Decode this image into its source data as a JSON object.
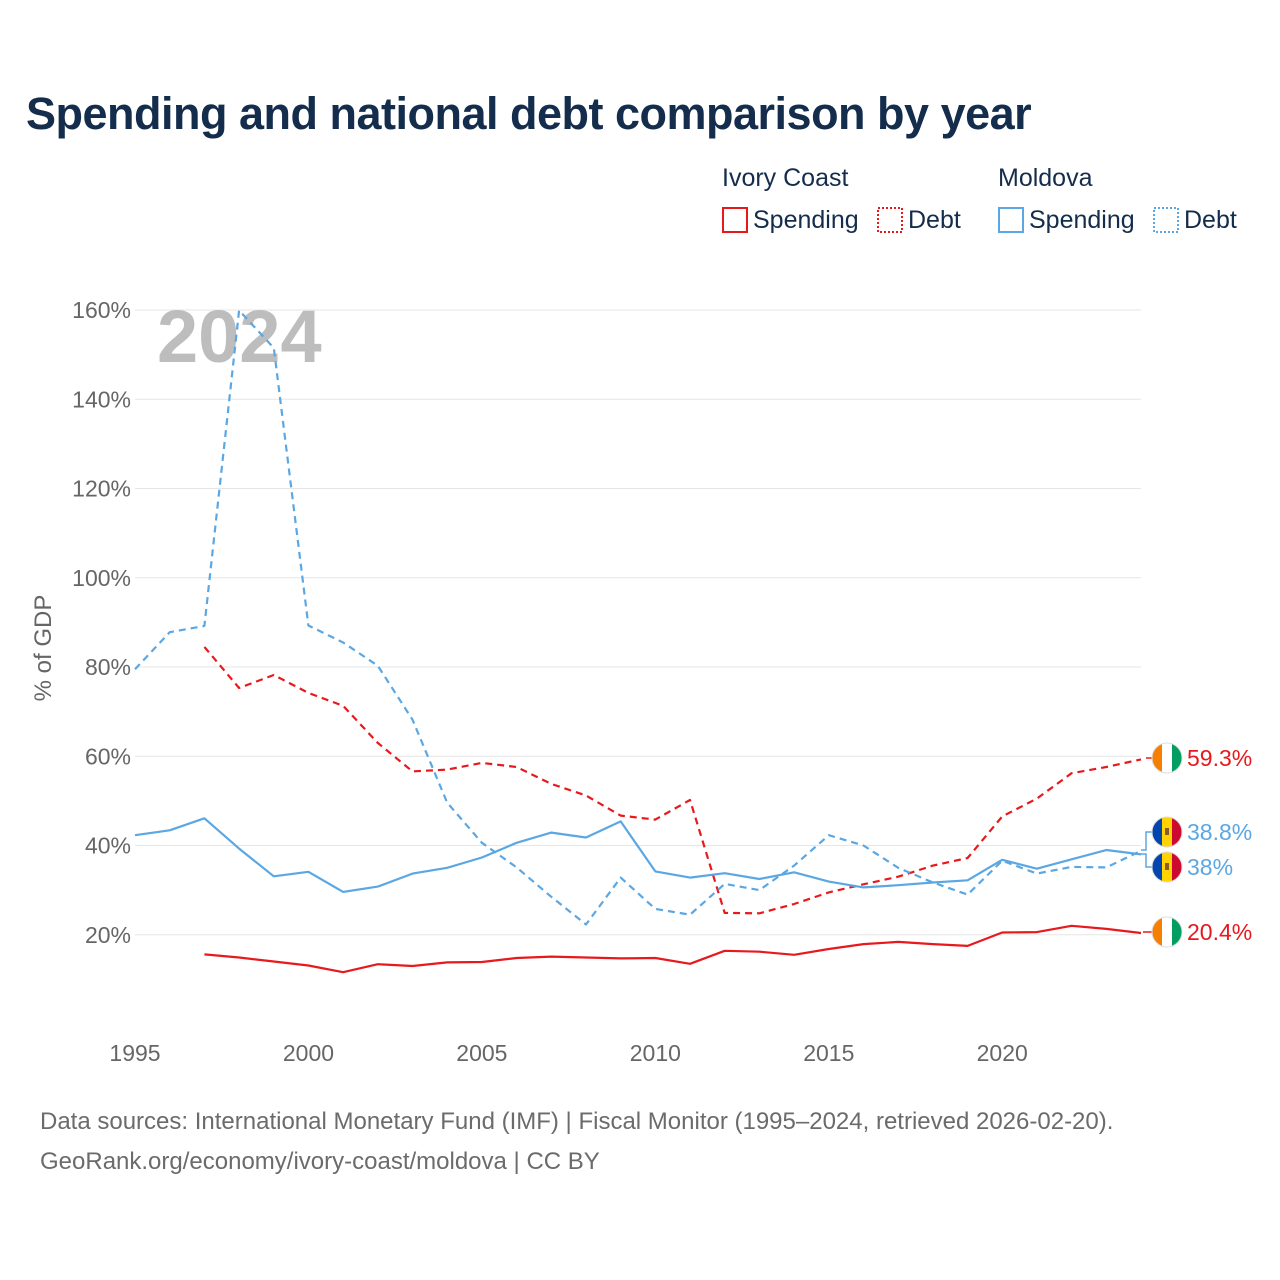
{
  "chart_data": {
    "type": "line",
    "title": "Spending and national debt comparison by year",
    "ylabel": "% of GDP",
    "xlabel": "",
    "year_label": "2024",
    "xlim": [
      1995,
      2024
    ],
    "ylim": [
      0,
      160
    ],
    "x_ticks": [
      1995,
      2000,
      2005,
      2010,
      2015,
      2020
    ],
    "y_ticks": [
      20,
      40,
      60,
      80,
      100,
      120,
      140,
      160
    ],
    "y_tick_suffix": "%",
    "grid": true,
    "legend": {
      "placement": "top-right",
      "groups": [
        {
          "country": "Ivory Coast",
          "color": "#e8191d",
          "spending_label": "Spending",
          "debt_label": "Debt"
        },
        {
          "country": "Moldova",
          "color": "#5ba7e3",
          "spending_label": "Spending",
          "debt_label": "Debt"
        }
      ]
    },
    "series": [
      {
        "name": "Ivory Coast Spending",
        "country": "Ivory Coast",
        "metric": "Spending",
        "color": "#e8191d",
        "dash": "solid",
        "x": [
          1997,
          1998,
          1999,
          2000,
          2001,
          2002,
          2003,
          2004,
          2005,
          2006,
          2007,
          2008,
          2009,
          2010,
          2011,
          2012,
          2013,
          2014,
          2015,
          2016,
          2017,
          2018,
          2019,
          2020,
          2021,
          2022,
          2023,
          2024
        ],
        "values": [
          15.6,
          14.9,
          14.0,
          13.1,
          11.6,
          13.4,
          13.0,
          13.8,
          13.9,
          14.8,
          15.1,
          14.9,
          14.7,
          14.8,
          13.5,
          16.4,
          16.2,
          15.5,
          16.8,
          17.9,
          18.4,
          17.9,
          17.5,
          20.5,
          20.6,
          22.0,
          21.3,
          20.4
        ],
        "end_label": "20.4%",
        "flag": "ivory-coast"
      },
      {
        "name": "Ivory Coast Debt",
        "country": "Ivory Coast",
        "metric": "Debt",
        "color": "#e8191d",
        "dash": "dashed",
        "x": [
          1997,
          1998,
          1999,
          2000,
          2001,
          2002,
          2003,
          2004,
          2005,
          2006,
          2007,
          2008,
          2009,
          2010,
          2011,
          2012,
          2013,
          2014,
          2015,
          2016,
          2017,
          2018,
          2019,
          2020,
          2021,
          2022,
          2023,
          2024
        ],
        "values": [
          84.5,
          75.3,
          78.2,
          74.2,
          71.3,
          63.0,
          56.6,
          57.0,
          58.5,
          57.6,
          53.8,
          51.2,
          46.7,
          45.8,
          50.2,
          24.9,
          24.8,
          26.9,
          29.5,
          31.3,
          33.0,
          35.5,
          37.2,
          46.5,
          50.5,
          56.2,
          57.6,
          59.3
        ],
        "end_label": "59.3%",
        "flag": "ivory-coast"
      },
      {
        "name": "Moldova Spending",
        "country": "Moldova",
        "metric": "Spending",
        "color": "#5ba7e3",
        "dash": "solid",
        "x": [
          1995,
          1996,
          1997,
          1998,
          1999,
          2000,
          2001,
          2002,
          2003,
          2004,
          2005,
          2006,
          2007,
          2008,
          2009,
          2010,
          2011,
          2012,
          2013,
          2014,
          2015,
          2016,
          2017,
          2018,
          2019,
          2020,
          2021,
          2022,
          2023,
          2024
        ],
        "values": [
          42.3,
          43.4,
          46.1,
          39.3,
          33.1,
          34.1,
          29.6,
          30.8,
          33.7,
          35.0,
          37.3,
          40.6,
          42.9,
          41.8,
          45.4,
          34.2,
          32.8,
          33.8,
          32.5,
          34.0,
          31.9,
          30.6,
          31.1,
          31.7,
          32.2,
          36.8,
          34.8,
          36.9,
          39.0,
          38.0
        ],
        "end_label": "38%",
        "flag": "moldova"
      },
      {
        "name": "Moldova Debt",
        "country": "Moldova",
        "metric": "Debt",
        "color": "#5ba7e3",
        "dash": "dashed",
        "x": [
          1995,
          1996,
          1997,
          1998,
          1999,
          2000,
          2001,
          2002,
          2003,
          2004,
          2005,
          2006,
          2007,
          2008,
          2009,
          2010,
          2011,
          2012,
          2013,
          2014,
          2015,
          2016,
          2017,
          2018,
          2019,
          2020,
          2021,
          2022,
          2023,
          2024
        ],
        "values": [
          79.5,
          87.8,
          89.2,
          159.9,
          151.5,
          89.3,
          85.5,
          80.3,
          68.2,
          49.6,
          40.6,
          35.1,
          28.5,
          22.3,
          32.8,
          25.8,
          24.5,
          31.4,
          30.0,
          35.5,
          42.3,
          40.0,
          35.0,
          31.7,
          29.0,
          36.6,
          33.7,
          35.2,
          35.1,
          38.8
        ],
        "end_label": "38.8%",
        "flag": "moldova"
      }
    ]
  },
  "source": {
    "line1": "Data sources: International Monetary Fund (IMF) | Fiscal Monitor (1995–2024, retrieved 2026-02-20).",
    "line2": "GeoRank.org/economy/ivory-coast/moldova | CC BY"
  }
}
